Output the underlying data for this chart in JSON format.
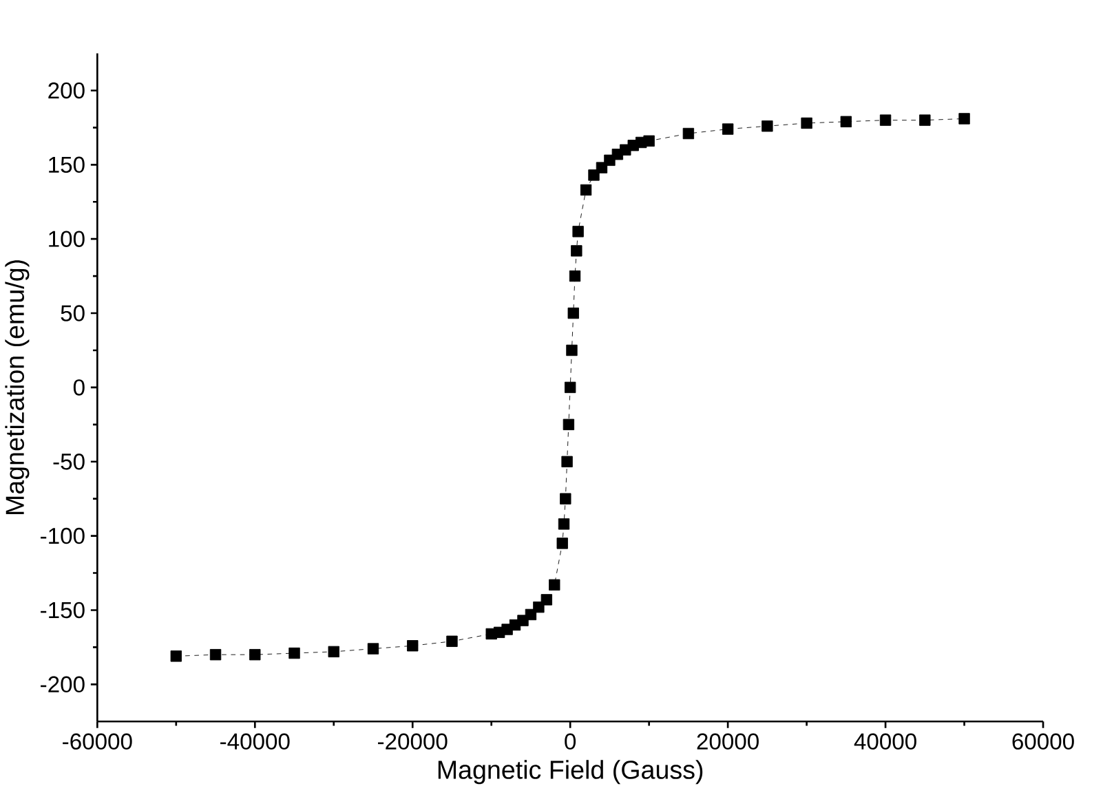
{
  "chart_data": {
    "type": "line",
    "xlabel": "Magnetic Field (Gauss)",
    "ylabel": "Magnetization (emu/g)",
    "x": [
      -50000,
      -45000,
      -40000,
      -35000,
      -30000,
      -25000,
      -20000,
      -15000,
      -10000,
      -9000,
      -8000,
      -7000,
      -6000,
      -5000,
      -4000,
      -3000,
      -2000,
      -1000,
      -800,
      -600,
      -400,
      -200,
      0,
      200,
      400,
      600,
      800,
      1000,
      2000,
      3000,
      4000,
      5000,
      6000,
      7000,
      8000,
      9000,
      10000,
      15000,
      20000,
      25000,
      30000,
      35000,
      40000,
      45000,
      50000
    ],
    "series": [
      {
        "color": "#000000",
        "values": [
          -181,
          -180,
          -180,
          -179,
          -178,
          -176,
          -174,
          -171,
          -166,
          -165,
          -163,
          -160,
          -157,
          -153,
          -148,
          -143,
          -133,
          -105,
          -92,
          -75,
          -50,
          -25,
          0,
          25,
          50,
          75,
          92,
          105,
          133,
          143,
          148,
          153,
          157,
          160,
          163,
          165,
          166,
          171,
          174,
          176,
          178,
          179,
          180,
          180,
          181
        ]
      }
    ],
    "xlim": [
      -60000,
      60000
    ],
    "xticks": [
      -60000,
      -40000,
      -20000,
      0,
      20000,
      40000,
      60000
    ],
    "ylim": [
      -225,
      225
    ],
    "yticks": [
      -200,
      -150,
      -100,
      -50,
      0,
      50,
      100,
      150,
      200
    ],
    "marker": "square",
    "line_style": "dashed",
    "grid": false
  }
}
